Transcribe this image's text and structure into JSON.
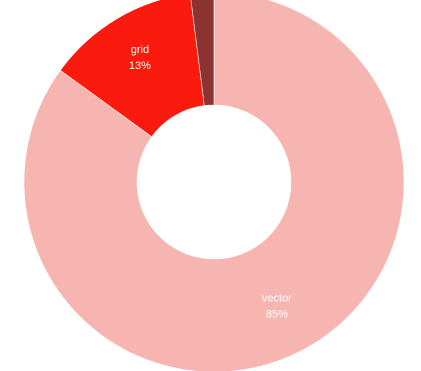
{
  "chart_data": {
    "type": "pie",
    "donut": true,
    "categories": [
      "vector",
      "grid",
      ""
    ],
    "values": [
      85,
      13,
      2
    ],
    "labels": [
      {
        "name": "vector",
        "percent": "85%"
      },
      {
        "name": "grid",
        "percent": "13%"
      },
      {
        "name": "",
        "percent": ""
      }
    ],
    "colors": [
      "#f6b5b0",
      "#fa1b0e",
      "#8a3330"
    ],
    "legend": "none",
    "title": ""
  }
}
